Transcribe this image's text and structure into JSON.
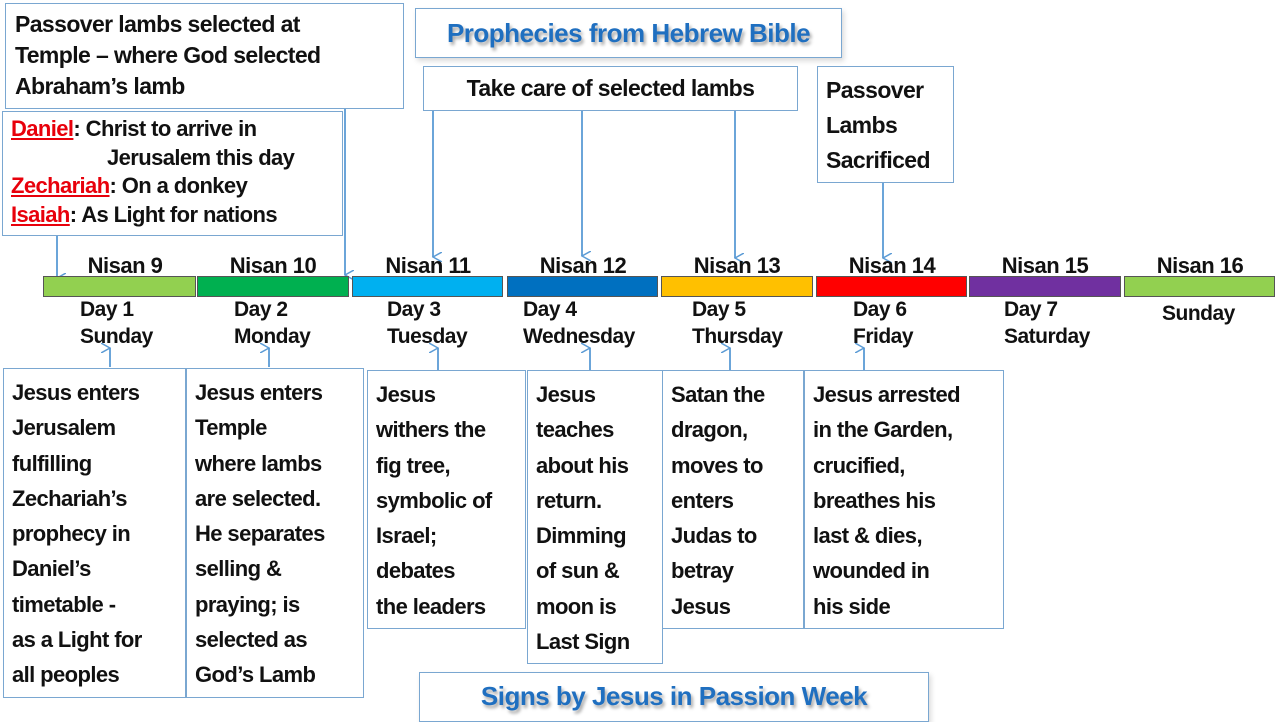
{
  "titles": {
    "prophecies": "Prophecies from Hebrew Bible",
    "signs": "Signs by Jesus in Passion Week"
  },
  "callouts": {
    "temple": [
      "Passover lambs selected at",
      "Temple – where God selected",
      "Abraham’s lamb"
    ],
    "prophets": [
      {
        "name": "Daniel",
        "text": ": Christ to arrive in"
      },
      {
        "name": "",
        "text": "Jerusalem this day"
      },
      {
        "name": "Zechariah",
        "text": ": On a donkey"
      },
      {
        "name": "Isaiah",
        "text": ": As Light for nations"
      }
    ],
    "care": "Take care of selected lambs",
    "sacrificed": [
      "Passover",
      "Lambs",
      "Sacrificed"
    ]
  },
  "days": [
    {
      "nisan": "Nisan 9",
      "day": "Day 1",
      "weekday": "Sunday",
      "color": "#92d050"
    },
    {
      "nisan": "Nisan 10",
      "day": "Day 2",
      "weekday": "Monday",
      "color": "#00b050"
    },
    {
      "nisan": "Nisan 11",
      "day": "Day 3",
      "weekday": "Tuesday",
      "color": "#00b0f0"
    },
    {
      "nisan": "Nisan 12",
      "day": "Day 4",
      "weekday": "Wednesday",
      "color": "#0070c0"
    },
    {
      "nisan": "Nisan 13",
      "day": "Day 5",
      "weekday": "Thursday",
      "color": "#ffc000"
    },
    {
      "nisan": "Nisan 14",
      "day": "Day 6",
      "weekday": "Friday",
      "color": "#ff0000"
    },
    {
      "nisan": "Nisan 15",
      "day": "Day 7",
      "weekday": "Saturday",
      "color": "#7030a0"
    },
    {
      "nisan": "Nisan 16",
      "day": "",
      "weekday": "Sunday",
      "color": "#92d050"
    }
  ],
  "events": [
    [
      "Jesus enters",
      "Jerusalem",
      "fulfilling",
      "Zechariah’s",
      "prophecy in",
      "Daniel’s",
      "timetable -",
      "as a Light for",
      "all peoples"
    ],
    [
      "Jesus enters",
      "Temple",
      "where lambs",
      "are selected.",
      "He separates",
      "selling &",
      "praying; is",
      "selected as",
      "God’s Lamb"
    ],
    [
      "Jesus",
      "withers the",
      "fig tree,",
      "symbolic of",
      "Israel;",
      "debates",
      "the leaders"
    ],
    [
      "Jesus",
      "teaches",
      "about his",
      "return.",
      "Dimming",
      "of sun &",
      "moon is",
      "Last Sign"
    ],
    [
      "Satan the",
      "dragon,",
      "moves to",
      "enters",
      "Judas to",
      "betray",
      "Jesus"
    ],
    [
      "Jesus arrested",
      "in the Garden,",
      "crucified,",
      "breathes his",
      "last & dies,",
      "wounded in",
      "his side"
    ]
  ],
  "colors": {
    "arrow": "#5b9bd5",
    "title": "#1f6fc0",
    "prophet": "#e8000b"
  }
}
